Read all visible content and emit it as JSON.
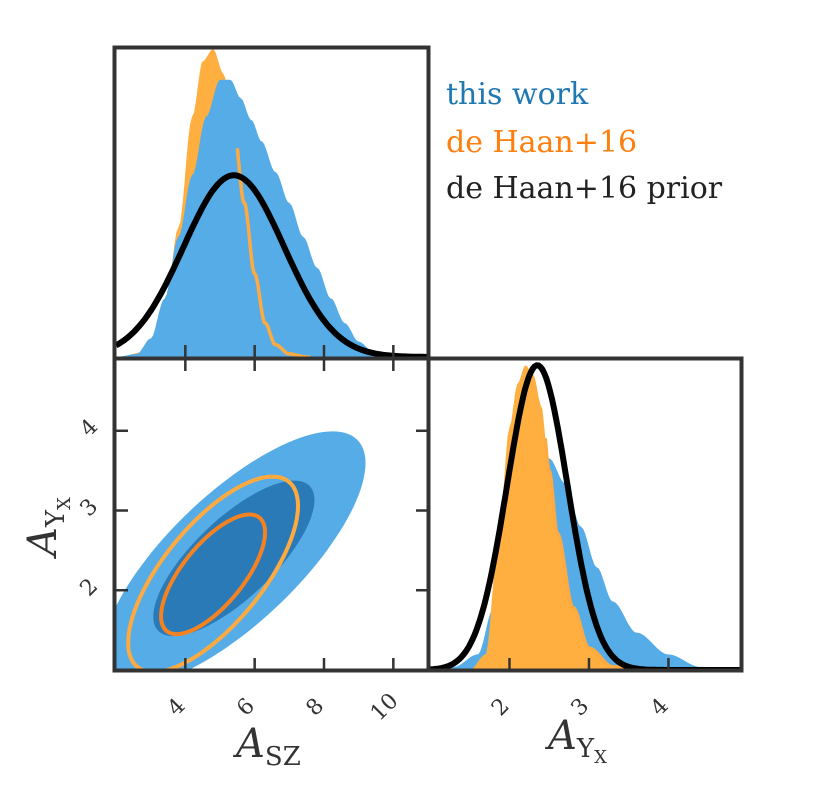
{
  "colors": {
    "this_work_fill": "#55ace6",
    "this_work_dark": "#2a7ab8",
    "this_work_text": "#1f77b4",
    "dehaan_fill": "#ffaf40",
    "dehaan_line": "#ffaa40",
    "dehaan_inner": "#f58220",
    "dehaan_text": "#ff7f0e",
    "prior_line": "#000000",
    "frame": "#333333"
  },
  "legend": {
    "this_work": "this work",
    "dehaan16": "de Haan+16",
    "dehaan16_prior": "de Haan+16 prior"
  },
  "chart_data": {
    "type": "corner",
    "parameters": [
      "A_SZ",
      "A_YX"
    ],
    "axes": {
      "asz": {
        "label_main": "A",
        "label_sub": "SZ",
        "range": [
          2,
          11
        ],
        "ticks": [
          4,
          6,
          8,
          10
        ],
        "tick_labels": [
          "4",
          "6",
          "8",
          "10"
        ]
      },
      "ayx": {
        "label_main": "A",
        "label_sub": "Y",
        "label_subsub": "X",
        "range": [
          1,
          4.9
        ],
        "ticks": [
          2,
          3,
          4
        ],
        "tick_labels": [
          "2",
          "3",
          "4"
        ]
      }
    },
    "marginal_asz": {
      "this_work": {
        "x": [
          2.0,
          2.6,
          3.0,
          3.4,
          3.8,
          4.2,
          4.6,
          5.0,
          5.3,
          5.6,
          5.9,
          6.2,
          6.6,
          7.0,
          7.4,
          7.8,
          8.2,
          8.6,
          9.0,
          9.4,
          10.0,
          11.0
        ],
        "y": [
          0.0,
          0.01,
          0.06,
          0.19,
          0.39,
          0.59,
          0.78,
          0.9,
          0.9,
          0.84,
          0.77,
          0.7,
          0.6,
          0.5,
          0.39,
          0.29,
          0.19,
          0.11,
          0.05,
          0.02,
          0.0,
          0.0
        ]
      },
      "dehaan16": {
        "x": [
          2.0,
          3.0,
          3.4,
          3.8,
          4.2,
          4.5,
          4.8,
          5.1,
          5.4,
          5.7,
          6.0,
          6.3,
          6.6,
          7.0,
          7.5,
          11.0
        ],
        "y": [
          0.0,
          0.02,
          0.15,
          0.42,
          0.78,
          0.96,
          1.0,
          0.92,
          0.74,
          0.5,
          0.27,
          0.11,
          0.04,
          0.01,
          0.0,
          0.0
        ]
      },
      "prior": {
        "mean": 5.4,
        "sigma": 1.45,
        "peak": 0.59
      }
    },
    "marginal_ayx": {
      "this_work": {
        "x": [
          1.0,
          1.3,
          1.6,
          1.8,
          2.0,
          2.2,
          2.35,
          2.5,
          2.7,
          2.9,
          3.1,
          3.3,
          3.6,
          4.0,
          4.4,
          4.9
        ],
        "y": [
          0.0,
          0.01,
          0.05,
          0.2,
          0.52,
          0.66,
          0.69,
          0.68,
          0.6,
          0.46,
          0.33,
          0.22,
          0.12,
          0.05,
          0.01,
          0.0
        ]
      },
      "dehaan16": {
        "x": [
          1.0,
          1.5,
          1.7,
          1.85,
          2.0,
          2.1,
          2.2,
          2.3,
          2.4,
          2.5,
          2.6,
          2.8,
          3.0,
          3.3,
          4.0
        ],
        "y": [
          0.0,
          0.0,
          0.05,
          0.38,
          0.78,
          0.92,
          0.98,
          0.95,
          0.85,
          0.64,
          0.44,
          0.2,
          0.07,
          0.01,
          0.0
        ]
      },
      "prior": {
        "mean": 2.35,
        "sigma": 0.38,
        "peak": 0.98
      }
    },
    "joint": {
      "this_work": {
        "cx": 5.4,
        "cy": 2.4,
        "sx": 1.55,
        "sy": 0.65,
        "rho": 0.75,
        "levels": [
          1,
          2
        ]
      },
      "dehaan16": {
        "cx": 4.8,
        "cy": 2.2,
        "sx": 1.0,
        "sy": 0.5,
        "rho": 0.7,
        "levels": [
          1,
          2
        ]
      }
    }
  }
}
